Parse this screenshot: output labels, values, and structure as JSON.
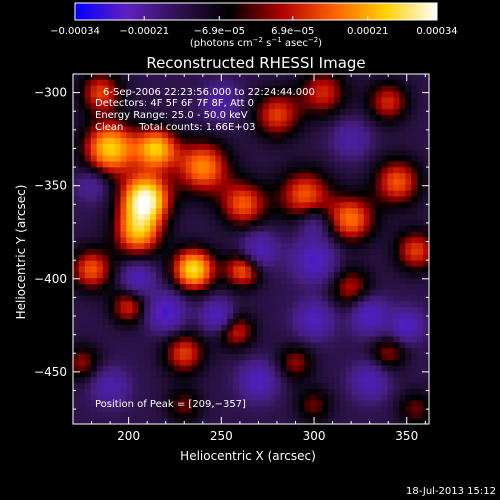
{
  "chart_data": {
    "type": "heatmap",
    "title": "Reconstructed RHESSI Image",
    "xlabel": "Heliocentric X (arcsec)",
    "ylabel": "Heliocentric Y (arcsec)",
    "xlim": [
      170,
      362
    ],
    "ylim": [
      -478,
      -290
    ],
    "x_ticks": [
      200,
      250,
      300,
      350
    ],
    "y_ticks": [
      -300,
      -350,
      -400,
      -450
    ],
    "x_tick_labels": [
      "200",
      "250",
      "300",
      "350"
    ],
    "y_tick_labels": [
      "−300",
      "−350",
      "−400",
      "−450"
    ],
    "colorbar": {
      "range": [
        -0.00034,
        0.00034
      ],
      "tick_values": [
        -0.00034,
        -0.00021,
        -6.9e-05,
        6.9e-05,
        0.00021,
        0.00034
      ],
      "tick_labels": [
        "−0.00034",
        "−0.00021",
        "−6.9e−05",
        "6.9e−05",
        "0.00021",
        "0.00034"
      ],
      "units_prefix": "(photons cm",
      "units_exp1": "−2",
      "units_mid": " s",
      "units_exp2": "−1",
      "units_mid2": " asec",
      "units_exp3": "−2",
      "units_suffix": ")",
      "colors": [
        "#0000ff",
        "#6020c0",
        "#301050",
        "#000000",
        "#b00000",
        "#ff6000",
        "#ffd000",
        "#ffffff"
      ]
    },
    "annotations": [
      "6-Sep-2006 22:23:56.000 to 22:24:44.000",
      "Detectors: 4F 5F 6F 7F 8F, Att 0",
      "Energy Range: 25.0 - 50.0 keV",
      "Clean     Total counts: 1.66E+03"
    ],
    "peak_text": "Position of Peak = [209,−357]",
    "peak": [
      209,
      -357
    ],
    "blobs": [
      {
        "x": 209,
        "y": -357,
        "amp": 1.0,
        "s": 9
      },
      {
        "x": 190,
        "y": -330,
        "amp": 0.8,
        "s": 10
      },
      {
        "x": 215,
        "y": -330,
        "amp": 0.75,
        "s": 8
      },
      {
        "x": 205,
        "y": -375,
        "amp": 0.7,
        "s": 9
      },
      {
        "x": 240,
        "y": -340,
        "amp": 0.65,
        "s": 10
      },
      {
        "x": 262,
        "y": -360,
        "amp": 0.55,
        "s": 9
      },
      {
        "x": 235,
        "y": -395,
        "amp": 0.85,
        "s": 8
      },
      {
        "x": 262,
        "y": -395,
        "amp": 0.6,
        "s": 7
      },
      {
        "x": 295,
        "y": -355,
        "amp": 0.55,
        "s": 10
      },
      {
        "x": 320,
        "y": -368,
        "amp": 0.6,
        "s": 9
      },
      {
        "x": 345,
        "y": -348,
        "amp": 0.55,
        "s": 9
      },
      {
        "x": 355,
        "y": -385,
        "amp": 0.5,
        "s": 8
      },
      {
        "x": 280,
        "y": -312,
        "amp": 0.5,
        "s": 9
      },
      {
        "x": 305,
        "y": -300,
        "amp": 0.45,
        "s": 9
      },
      {
        "x": 340,
        "y": -305,
        "amp": 0.45,
        "s": 8
      },
      {
        "x": 185,
        "y": -300,
        "amp": 0.5,
        "s": 8
      },
      {
        "x": 180,
        "y": -395,
        "amp": 0.55,
        "s": 8
      },
      {
        "x": 200,
        "y": -415,
        "amp": 0.45,
        "s": 7
      },
      {
        "x": 230,
        "y": -440,
        "amp": 0.5,
        "s": 8
      },
      {
        "x": 258,
        "y": -428,
        "amp": 0.45,
        "s": 7
      },
      {
        "x": 320,
        "y": -405,
        "amp": 0.4,
        "s": 8
      },
      {
        "x": 175,
        "y": -445,
        "amp": 0.35,
        "s": 7
      },
      {
        "x": 290,
        "y": -445,
        "amp": 0.35,
        "s": 7
      },
      {
        "x": 340,
        "y": -440,
        "amp": 0.35,
        "s": 7
      },
      {
        "x": 230,
        "y": -468,
        "amp": 0.3,
        "s": 7
      },
      {
        "x": 300,
        "y": -468,
        "amp": 0.3,
        "s": 7
      },
      {
        "x": 355,
        "y": -470,
        "amp": 0.3,
        "s": 7
      },
      {
        "x": 270,
        "y": -385,
        "amp": -0.5,
        "s": 7
      },
      {
        "x": 300,
        "y": -390,
        "amp": -0.55,
        "s": 8
      },
      {
        "x": 205,
        "y": -400,
        "amp": -0.5,
        "s": 6
      },
      {
        "x": 220,
        "y": -418,
        "amp": -0.6,
        "s": 7
      },
      {
        "x": 248,
        "y": -420,
        "amp": -0.55,
        "s": 6
      },
      {
        "x": 300,
        "y": -422,
        "amp": -0.5,
        "s": 7
      },
      {
        "x": 330,
        "y": -420,
        "amp": -0.55,
        "s": 7
      },
      {
        "x": 350,
        "y": -425,
        "amp": -0.55,
        "s": 6
      },
      {
        "x": 270,
        "y": -455,
        "amp": -0.5,
        "s": 7
      },
      {
        "x": 330,
        "y": -455,
        "amp": -0.45,
        "s": 7
      },
      {
        "x": 190,
        "y": -458,
        "amp": -0.4,
        "s": 7
      },
      {
        "x": 180,
        "y": -350,
        "amp": -0.3,
        "s": 6
      },
      {
        "x": 250,
        "y": -305,
        "amp": -0.35,
        "s": 7
      },
      {
        "x": 320,
        "y": -325,
        "amp": -0.35,
        "s": 7
      },
      {
        "x": 300,
        "y": -370,
        "amp": -0.3,
        "s": 6
      }
    ]
  },
  "footer": {
    "timestamp": "18-Jul-2013 15:12"
  }
}
